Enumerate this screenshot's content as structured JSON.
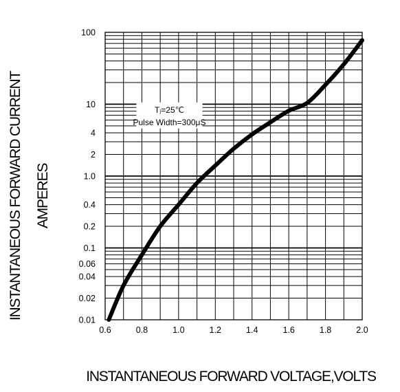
{
  "chart_data": {
    "type": "line",
    "title": "",
    "xlabel": "INSTANTANEOUS FORWARD VOLTAGE,VOLTS",
    "ylabel_lines": [
      "INSTANTANEOUS FORWARD CURRENT",
      "AMPERES"
    ],
    "x_scale": "linear",
    "y_scale": "log",
    "xlim": [
      0.6,
      2.0
    ],
    "ylim": [
      0.01,
      100
    ],
    "x_ticks": [
      0.6,
      0.8,
      1.0,
      1.2,
      1.4,
      1.6,
      1.8,
      2.0
    ],
    "x_tick_labels": [
      "0.6",
      "0.8",
      "1.0",
      "1.2",
      "1.4",
      "1.6",
      "1.8",
      "2.0"
    ],
    "y_ticks": [
      0.01,
      0.02,
      0.04,
      0.06,
      0.1,
      0.2,
      0.4,
      1.0,
      2,
      4,
      10,
      100
    ],
    "y_tick_labels": [
      "0.01",
      "0.02",
      "0.04",
      "0.06",
      "0.1",
      "0.2",
      "0.4",
      "1.0",
      "2",
      "4",
      "10",
      "100"
    ],
    "grid": true,
    "annotation_lines": [
      "Tⱼ=25℃",
      "Pulse Width=300μS"
    ],
    "series": [
      {
        "color": "#000000",
        "x": [
          0.62,
          0.7,
          0.8,
          0.9,
          1.0,
          1.1,
          1.2,
          1.3,
          1.4,
          1.5,
          1.6,
          1.7,
          1.8,
          1.9,
          2.0
        ],
        "y": [
          0.01,
          0.03,
          0.08,
          0.2,
          0.4,
          0.8,
          1.4,
          2.4,
          3.8,
          5.6,
          8.1,
          10.4,
          18.6,
          36.0,
          77.6
        ]
      }
    ]
  }
}
